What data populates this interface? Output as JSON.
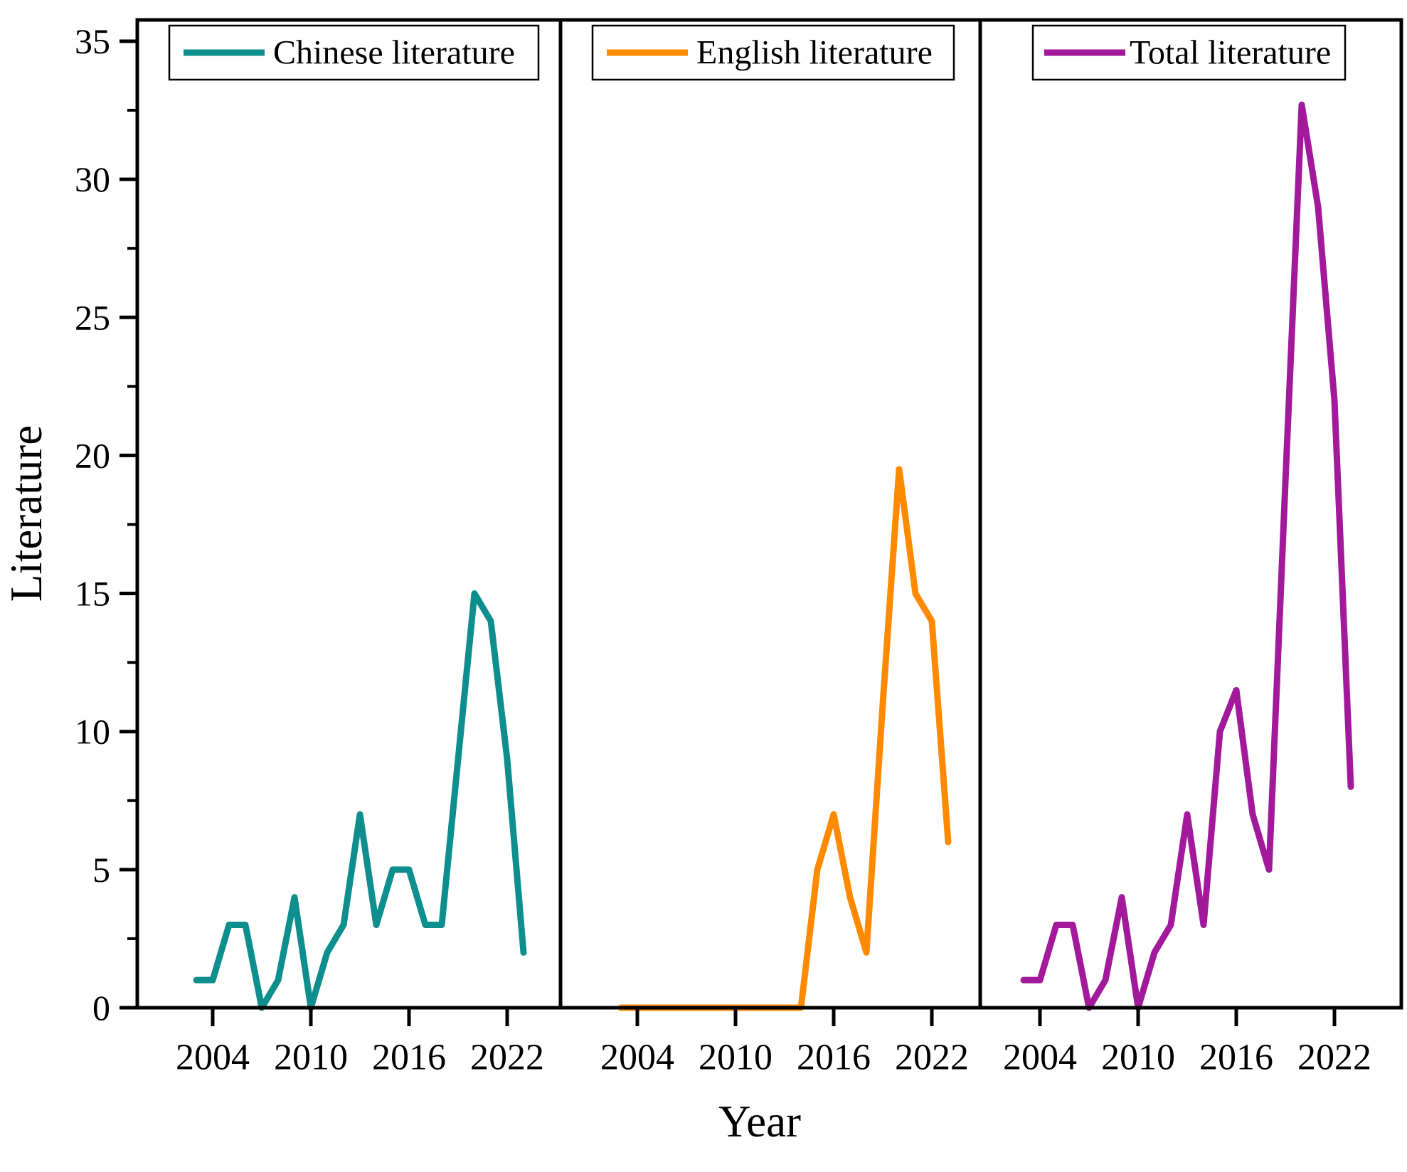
{
  "axes": {
    "y_label": "Literature",
    "x_label": "Year",
    "y_ticks": [
      0,
      5,
      10,
      15,
      20,
      25,
      30,
      35
    ],
    "y_minor_step": 2.5,
    "x_ticks": [
      2004,
      2010,
      2016,
      2022
    ],
    "ylim": [
      0,
      35
    ],
    "x_range": [
      2003,
      2023
    ]
  },
  "chart_data": [
    {
      "type": "line",
      "legend": "Chinese literature",
      "color": "#0f8e8e",
      "x": [
        2003,
        2004,
        2005,
        2006,
        2007,
        2008,
        2009,
        2010,
        2011,
        2012,
        2013,
        2014,
        2015,
        2016,
        2017,
        2018,
        2019,
        2020,
        2021,
        2022,
        2023
      ],
      "values": [
        1,
        1,
        3,
        3,
        0,
        1,
        4,
        0,
        2,
        3,
        7,
        3,
        5,
        5,
        3,
        3,
        9,
        15,
        14,
        9,
        2
      ]
    },
    {
      "type": "line",
      "legend": "English literature",
      "color": "#ff8a00",
      "x": [
        2003,
        2004,
        2005,
        2006,
        2007,
        2008,
        2009,
        2010,
        2011,
        2012,
        2013,
        2014,
        2015,
        2016,
        2017,
        2018,
        2019,
        2020,
        2021,
        2022,
        2023
      ],
      "values": [
        0,
        0,
        0,
        0,
        0,
        0,
        0,
        0,
        0,
        0,
        0,
        0,
        5,
        7,
        4,
        2,
        11,
        19.5,
        15,
        14,
        6
      ]
    },
    {
      "type": "line",
      "legend": "Total literature",
      "color": "#a21a9b",
      "x": [
        2003,
        2004,
        2005,
        2006,
        2007,
        2008,
        2009,
        2010,
        2011,
        2012,
        2013,
        2014,
        2015,
        2016,
        2017,
        2018,
        2019,
        2020,
        2021,
        2022,
        2023
      ],
      "values": [
        1,
        1,
        3,
        3,
        0,
        1,
        4,
        0,
        2,
        3,
        7,
        3,
        10,
        11.5,
        7,
        5,
        19,
        32.7,
        29,
        22,
        8
      ]
    }
  ]
}
